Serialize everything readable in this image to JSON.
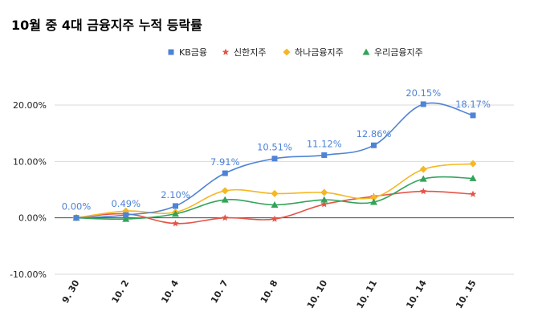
{
  "chart_data": {
    "type": "line",
    "title": "10월 중 4대 금융지주 누적 등락률",
    "categories": [
      "9. 30",
      "10. 2",
      "10. 4",
      "10. 7",
      "10. 8",
      "10. 10",
      "10. 11",
      "10. 14",
      "10. 15"
    ],
    "ylim": [
      -10,
      20
    ],
    "yticks": [
      -10,
      0,
      10,
      20
    ],
    "ytick_labels": [
      "-10.00%",
      "0.00%",
      "10.00%",
      "20.00%"
    ],
    "xlabel": "",
    "ylabel": "",
    "grid": "horizontal",
    "legend_position": "top-right",
    "series": [
      {
        "name": "KB금융",
        "color": "#4e83d6",
        "marker": "square",
        "values": [
          0.0,
          0.49,
          2.1,
          7.91,
          10.51,
          11.12,
          12.86,
          20.15,
          18.17
        ],
        "data_labels": [
          "0.00%",
          "0.49%",
          "2.10%",
          "7.91%",
          "10.51%",
          "11.12%",
          "12.86%",
          "20.15%",
          "18.17%"
        ]
      },
      {
        "name": "신한지주",
        "color": "#e45347",
        "marker": "star",
        "values": [
          0.0,
          0.7,
          -1.0,
          0.0,
          -0.2,
          2.4,
          3.8,
          4.7,
          4.2
        ]
      },
      {
        "name": "하나금융지주",
        "color": "#f5b724",
        "marker": "diamond",
        "values": [
          0.0,
          1.2,
          1.0,
          4.8,
          4.3,
          4.5,
          3.6,
          8.6,
          9.6
        ]
      },
      {
        "name": "우리금융지주",
        "color": "#33a35a",
        "marker": "triangle",
        "values": [
          0.0,
          -0.2,
          0.7,
          3.2,
          2.3,
          3.2,
          2.8,
          6.9,
          7.0
        ]
      }
    ]
  }
}
